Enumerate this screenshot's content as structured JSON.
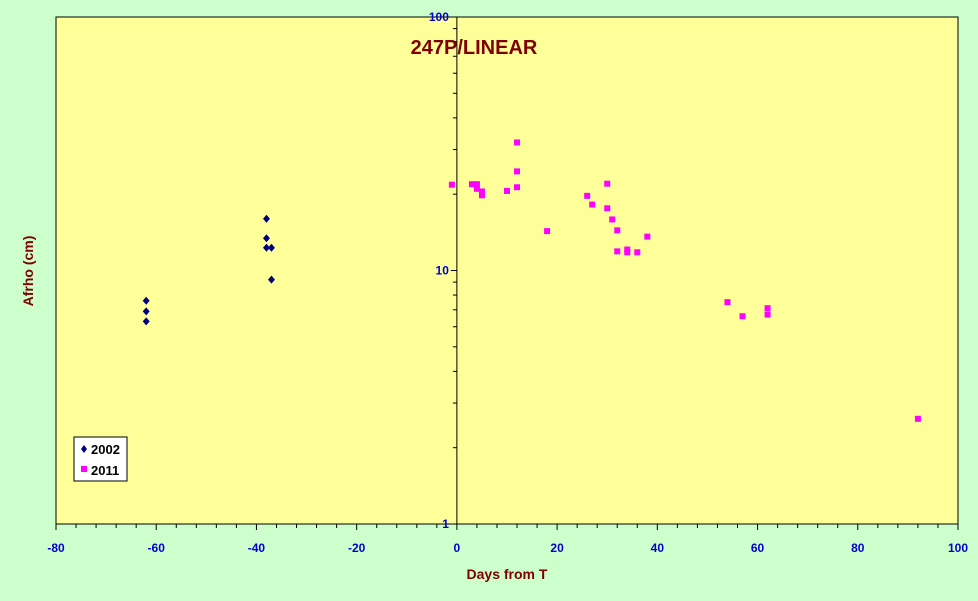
{
  "chart_data": {
    "type": "scatter",
    "title": "247P/LINEAR",
    "xlabel": "Days from T",
    "ylabel": "Afrho (cm)",
    "xlim": [
      -80,
      100
    ],
    "ylim": [
      1,
      100
    ],
    "yscale": "log",
    "x_ticks": [
      "-80",
      "-60",
      "-40",
      "-20",
      "0",
      "20",
      "40",
      "60",
      "80",
      "100"
    ],
    "y_ticks": [
      "1",
      "10",
      "100"
    ],
    "legend_position": "bottom-left",
    "colors": {
      "plot_bg": "#ffff99",
      "page_bg": "#ccffcc",
      "tick_text": "#0000cc",
      "title_text": "#800000"
    },
    "series": [
      {
        "name": "2002",
        "marker": "diamond",
        "color": "#000080",
        "points": [
          [
            -62,
            7.6
          ],
          [
            -62,
            6.9
          ],
          [
            -62,
            6.3
          ],
          [
            -38,
            16.0
          ],
          [
            -38,
            13.4
          ],
          [
            -38,
            12.3
          ],
          [
            -37,
            12.3
          ],
          [
            -37,
            9.2
          ]
        ]
      },
      {
        "name": "2011",
        "marker": "square",
        "color": "#ff00ff",
        "points": [
          [
            -1,
            21.8
          ],
          [
            3,
            21.9
          ],
          [
            4,
            21.9
          ],
          [
            4,
            21.0
          ],
          [
            5,
            20.5
          ],
          [
            5,
            19.8
          ],
          [
            10,
            20.6
          ],
          [
            12,
            21.3
          ],
          [
            12,
            24.6
          ],
          [
            12,
            32.0
          ],
          [
            18,
            14.3
          ],
          [
            26,
            19.7
          ],
          [
            27,
            18.2
          ],
          [
            30,
            22.0
          ],
          [
            30,
            17.6
          ],
          [
            31,
            15.9
          ],
          [
            32,
            14.4
          ],
          [
            32,
            11.9
          ],
          [
            34,
            12.1
          ],
          [
            34,
            11.8
          ],
          [
            36,
            11.8
          ],
          [
            38,
            13.6
          ],
          [
            54,
            7.5
          ],
          [
            57,
            6.6
          ],
          [
            62,
            7.1
          ],
          [
            62,
            6.7
          ],
          [
            92,
            2.6
          ]
        ]
      }
    ]
  }
}
